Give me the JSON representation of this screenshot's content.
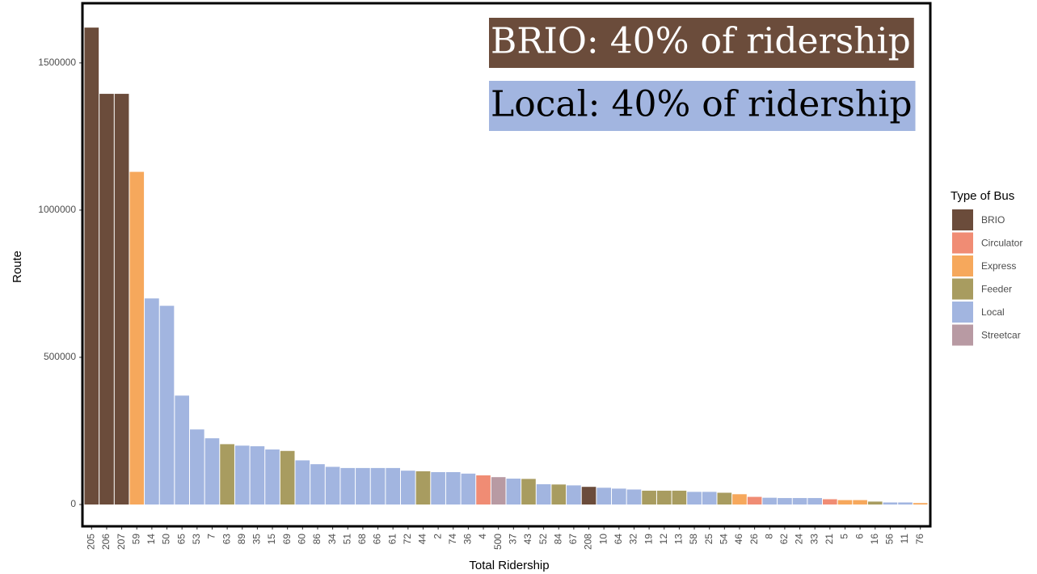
{
  "chart_data": {
    "type": "bar",
    "annotations": [
      "BRIO: 40% of ridership",
      "Local: 40% of ridership"
    ],
    "annotation_colors": [
      "#6b4c3b",
      "#a2b5e0"
    ],
    "x_label": "Total Ridership",
    "y_label": "Route",
    "categories": [
      "205",
      "206",
      "207",
      "59",
      "14",
      "50",
      "65",
      "53",
      "7",
      "63",
      "89",
      "35",
      "15",
      "69",
      "60",
      "86",
      "34",
      "51",
      "68",
      "66",
      "61",
      "72",
      "44",
      "2",
      "74",
      "36",
      "4",
      "500",
      "37",
      "43",
      "52",
      "84",
      "67",
      "208",
      "10",
      "64",
      "32",
      "19",
      "12",
      "13",
      "58",
      "25",
      "54",
      "46",
      "26",
      "8",
      "62",
      "24",
      "33",
      "21",
      "5",
      "6",
      "16",
      "56",
      "11",
      "76"
    ],
    "values": [
      1620000,
      1395000,
      1395000,
      1130000,
      700000,
      675000,
      370000,
      255000,
      225000,
      205000,
      200000,
      198000,
      187000,
      182000,
      150000,
      137000,
      128000,
      124000,
      124000,
      124000,
      124000,
      115000,
      113000,
      110000,
      110000,
      105000,
      99000,
      93000,
      88000,
      87000,
      69000,
      68000,
      65000,
      60000,
      57000,
      54000,
      51000,
      47000,
      47000,
      47000,
      43000,
      43000,
      40000,
      35000,
      26000,
      23000,
      22000,
      22000,
      22000,
      18000,
      15000,
      15000,
      10000,
      7000,
      7000,
      5000
    ],
    "types": [
      "BRIO",
      "BRIO",
      "BRIO",
      "Express",
      "Local",
      "Local",
      "Local",
      "Local",
      "Local",
      "Feeder",
      "Local",
      "Local",
      "Local",
      "Feeder",
      "Local",
      "Local",
      "Local",
      "Local",
      "Local",
      "Local",
      "Local",
      "Local",
      "Feeder",
      "Local",
      "Local",
      "Local",
      "Circulator",
      "Streetcar",
      "Local",
      "Feeder",
      "Local",
      "Feeder",
      "Local",
      "BRIO",
      "Local",
      "Local",
      "Local",
      "Feeder",
      "Feeder",
      "Feeder",
      "Local",
      "Local",
      "Feeder",
      "Express",
      "Circulator",
      "Local",
      "Local",
      "Local",
      "Local",
      "Circulator",
      "Express",
      "Express",
      "Feeder",
      "Local",
      "Local",
      "Express"
    ],
    "legend": {
      "title": "Type of Bus",
      "items": [
        {
          "name": "BRIO",
          "color": "#6b4c3b"
        },
        {
          "name": "Circulator",
          "color": "#f08c74"
        },
        {
          "name": "Express",
          "color": "#f6a85c"
        },
        {
          "name": "Feeder",
          "color": "#a89c60"
        },
        {
          "name": "Local",
          "color": "#a2b5e0"
        },
        {
          "name": "Streetcar",
          "color": "#b89aa3"
        }
      ]
    },
    "ylim": [
      -74000,
      1700000
    ],
    "yticks": [
      0,
      500000,
      1000000,
      1500000
    ],
    "grid": false
  }
}
